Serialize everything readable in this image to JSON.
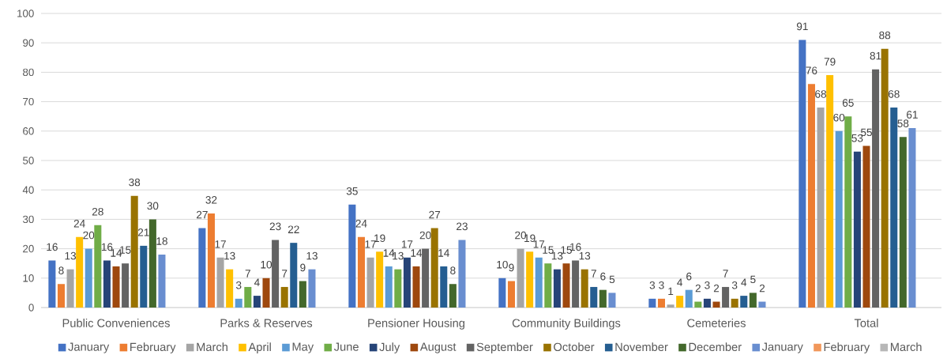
{
  "chart_data": {
    "type": "bar",
    "categories": [
      "Public Conveniences",
      "Parks & Reserves",
      "Pensioner Housing",
      "Community Buildings",
      "Cemeteries",
      "Total"
    ],
    "series": [
      {
        "name": "January",
        "color": "#4472c4",
        "values": [
          16,
          27,
          35,
          10,
          3,
          91
        ]
      },
      {
        "name": "February",
        "color": "#ed7d31",
        "values": [
          8,
          32,
          24,
          9,
          3,
          76
        ]
      },
      {
        "name": "March",
        "color": "#a5a5a5",
        "values": [
          13,
          17,
          17,
          20,
          1,
          68
        ]
      },
      {
        "name": "April",
        "color": "#ffc000",
        "values": [
          24,
          13,
          19,
          19,
          4,
          79
        ]
      },
      {
        "name": "May",
        "color": "#5b9bd5",
        "values": [
          20,
          3,
          14,
          17,
          6,
          60
        ]
      },
      {
        "name": "June",
        "color": "#70ad47",
        "values": [
          28,
          7,
          13,
          15,
          2,
          65
        ]
      },
      {
        "name": "July",
        "color": "#264478",
        "values": [
          16,
          4,
          17,
          13,
          3,
          53
        ]
      },
      {
        "name": "August",
        "color": "#9e480e",
        "values": [
          14,
          10,
          14,
          15,
          2,
          55
        ]
      },
      {
        "name": "September",
        "color": "#636363",
        "values": [
          15,
          23,
          20,
          16,
          7,
          81
        ]
      },
      {
        "name": "October",
        "color": "#997300",
        "values": [
          38,
          7,
          27,
          13,
          3,
          88
        ]
      },
      {
        "name": "November",
        "color": "#255e91",
        "values": [
          21,
          22,
          14,
          7,
          4,
          68
        ]
      },
      {
        "name": "December",
        "color": "#43682b",
        "values": [
          30,
          9,
          8,
          6,
          5,
          58
        ]
      },
      {
        "name": "January",
        "color": "#698ed0",
        "values": [
          18,
          13,
          23,
          5,
          2,
          61
        ]
      },
      {
        "name": "February",
        "color": "#f1975a",
        "values": [
          null,
          null,
          null,
          null,
          null,
          null
        ]
      },
      {
        "name": "March",
        "color": "#b7b7b7",
        "values": [
          null,
          null,
          null,
          null,
          null,
          null
        ]
      }
    ],
    "ylim": [
      0,
      100
    ],
    "yticks": [
      0,
      10,
      20,
      30,
      40,
      50,
      60,
      70,
      80,
      90,
      100
    ],
    "grid": "y",
    "legend": "bottom",
    "data_labels": true
  }
}
